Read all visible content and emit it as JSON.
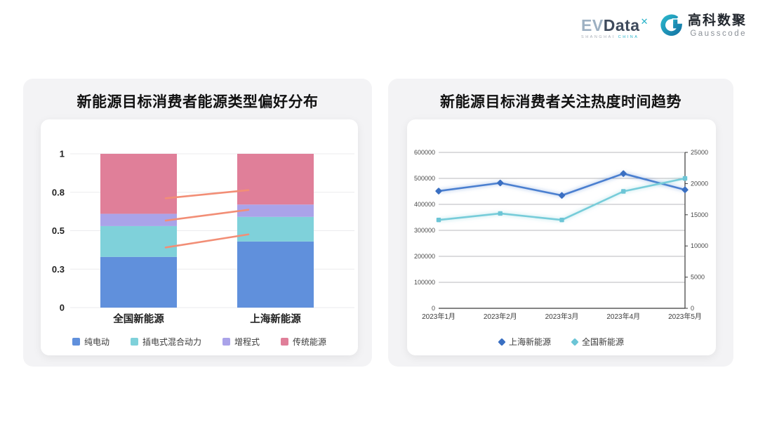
{
  "header": {
    "evdata": {
      "text_ev": "EV",
      "text_data": "Data",
      "sup": "✕",
      "sub1": "SHANGHAI",
      "sub2": "CHINA"
    },
    "gausscode": {
      "name": "高科数聚",
      "subtext": "Gausscode",
      "icon_color_top": "#29b3c9",
      "icon_color_bottom": "#1577a6"
    }
  },
  "chart_data": [
    {
      "type": "bar",
      "stacked": true,
      "title": "新能源目标消费者能源类型偏好分布",
      "categories": [
        "全国新能源",
        "上海新能源"
      ],
      "series": [
        {
          "name": "纯电动",
          "color": "#6090dc",
          "values": [
            0.33,
            0.43
          ]
        },
        {
          "name": "插电式混合动力",
          "color": "#7fd1da",
          "values": [
            0.2,
            0.16
          ]
        },
        {
          "name": "增程式",
          "color": "#aaa3e9",
          "values": [
            0.08,
            0.08
          ]
        },
        {
          "name": "传统能源",
          "color": "#e07f99",
          "values": [
            0.39,
            0.33
          ]
        }
      ],
      "ylim": [
        0,
        1
      ],
      "yticks": {
        "values": [
          0,
          0.25,
          0.5,
          0.75,
          1
        ],
        "labels": [
          "0",
          "0.3",
          "0.5",
          "0.8",
          "1"
        ]
      },
      "grid": true,
      "gridline_color": "#ebebee",
      "legend_position": "bottom",
      "connector_lines": {
        "color": "#f28e76",
        "segments": [
          {
            "from": 0.711,
            "to": 0.764
          },
          {
            "from": 0.566,
            "to": 0.636
          },
          {
            "from": 0.391,
            "to": 0.476
          }
        ]
      }
    },
    {
      "type": "line",
      "title": "新能源目标消费者关注热度时间趋势",
      "x": [
        "2023年1月",
        "2023年2月",
        "2023年3月",
        "2023年4月",
        "2023年5月"
      ],
      "series": [
        {
          "name": "上海新能源",
          "axis": "right",
          "color": "#4a7fd0",
          "marker_color": "#3a6fc2",
          "marker": "diamond",
          "values": [
            18800,
            20100,
            18100,
            21600,
            19000
          ]
        },
        {
          "name": "全国新能源",
          "axis": "left",
          "color": "#76ccd9",
          "marker_color": "#6cc5d6",
          "marker": "square",
          "values": [
            340000,
            365000,
            340000,
            450000,
            500000
          ]
        }
      ],
      "left_axis": {
        "min": 0,
        "max": 600000,
        "tick_step": 100000,
        "labels": [
          "0",
          "100000",
          "200000",
          "300000",
          "400000",
          "500000",
          "600000"
        ]
      },
      "right_axis": {
        "min": 0,
        "max": 25000,
        "tick_step": 5000,
        "labels": [
          "0",
          "5000",
          "10000",
          "15000",
          "20000",
          "25000"
        ]
      },
      "grid": true,
      "gridline_color": "#a3a3a6",
      "axis_line_color": "#3a3a3a",
      "legend_position": "bottom"
    }
  ]
}
